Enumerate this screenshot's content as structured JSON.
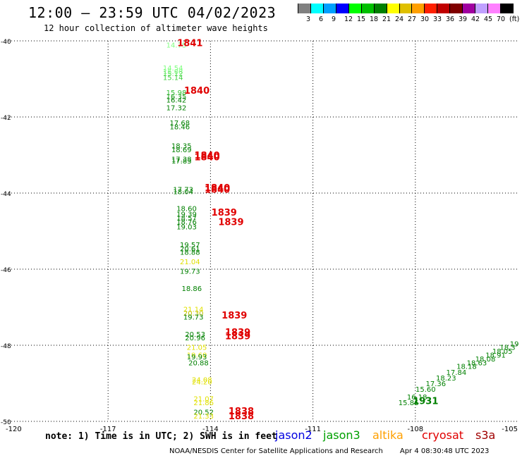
{
  "header": {
    "title": "12:00 — 23:59 UTC 04/02/2023",
    "subtitle": "12 hour collection of altimeter wave heights"
  },
  "color_scale": {
    "swatches": [
      "#808080",
      "#00ffff",
      "#00a0ff",
      "#0000ff",
      "#00ff00",
      "#00c000",
      "#008000",
      "#ffff00",
      "#e0c000",
      "#ffa000",
      "#ff2000",
      "#c00000",
      "#800000",
      "#a000a0",
      "#c0a0ff",
      "#ff80ff",
      "#000000"
    ],
    "labels": [
      "3",
      "6",
      "9",
      "12",
      "15",
      "18",
      "21",
      "24",
      "27",
      "30",
      "33",
      "36",
      "39",
      "42",
      "45",
      "70",
      "(ft)"
    ]
  },
  "map": {
    "lon_range": [
      -120,
      -105
    ],
    "lat_range": [
      -50,
      -40
    ],
    "lon_labels": [
      "-120",
      "-117",
      "-114",
      "-111",
      "-108",
      "-105"
    ],
    "lat_labels": [
      "-40",
      "-42",
      "-44",
      "-46",
      "-48",
      "-50"
    ],
    "grid": "dotted",
    "pass_labels": [
      {
        "text": "14.75",
        "lon": -115.0,
        "lat": -40.1,
        "color": "#80ff80"
      },
      {
        "text": "14.54",
        "lon": -115.1,
        "lat": -40.7,
        "color": "#80ff80"
      },
      {
        "text": "15.08",
        "lon": -115.1,
        "lat": -40.8,
        "color": "#80ff80"
      },
      {
        "text": "15.12",
        "lon": -115.1,
        "lat": -40.85,
        "color": "#60e060"
      },
      {
        "text": "15.14",
        "lon": -115.1,
        "lat": -40.95,
        "color": "#40d040"
      },
      {
        "text": "15.98",
        "lon": -115.0,
        "lat": -41.35,
        "color": "#30c030"
      },
      {
        "text": "16.35",
        "lon": -115.0,
        "lat": -41.45,
        "color": "#20a020"
      },
      {
        "text": "16.42",
        "lon": -115.0,
        "lat": -41.55,
        "color": "#008000"
      },
      {
        "text": "17.32",
        "lon": -115.0,
        "lat": -41.75,
        "color": "#008000"
      },
      {
        "text": "17.68",
        "lon": -114.9,
        "lat": -42.15,
        "color": "#008000"
      },
      {
        "text": "18.46",
        "lon": -114.9,
        "lat": -42.25,
        "color": "#008000"
      },
      {
        "text": "18.35",
        "lon": -114.85,
        "lat": -42.75,
        "color": "#008000"
      },
      {
        "text": "18.69",
        "lon": -114.85,
        "lat": -42.85,
        "color": "#008000"
      },
      {
        "text": "17.38",
        "lon": -114.85,
        "lat": -43.1,
        "color": "#008000"
      },
      {
        "text": "17.83",
        "lon": -114.85,
        "lat": -43.15,
        "color": "#008000"
      },
      {
        "text": "17.73",
        "lon": -114.8,
        "lat": -43.9,
        "color": "#008000"
      },
      {
        "text": "18.04",
        "lon": -114.8,
        "lat": -43.95,
        "color": "#008000"
      },
      {
        "text": "18.60",
        "lon": -114.7,
        "lat": -44.4,
        "color": "#008000"
      },
      {
        "text": "19.39",
        "lon": -114.7,
        "lat": -44.55,
        "color": "#008000"
      },
      {
        "text": "18.57",
        "lon": -114.7,
        "lat": -44.65,
        "color": "#008000"
      },
      {
        "text": "18.76",
        "lon": -114.7,
        "lat": -44.75,
        "color": "#008000"
      },
      {
        "text": "19.03",
        "lon": -114.7,
        "lat": -44.88,
        "color": "#008000"
      },
      {
        "text": "19.57",
        "lon": -114.6,
        "lat": -45.35,
        "color": "#008000"
      },
      {
        "text": "20.61",
        "lon": -114.6,
        "lat": -45.45,
        "color": "#008000"
      },
      {
        "text": "18.88",
        "lon": -114.6,
        "lat": -45.55,
        "color": "#008000"
      },
      {
        "text": "21.04",
        "lon": -114.6,
        "lat": -45.8,
        "color": "#e0e000"
      },
      {
        "text": "19.73",
        "lon": -114.6,
        "lat": -46.05,
        "color": "#008000"
      },
      {
        "text": "18.86",
        "lon": -114.55,
        "lat": -46.5,
        "color": "#008000"
      },
      {
        "text": "21.14",
        "lon": -114.5,
        "lat": -47.05,
        "color": "#e0e000"
      },
      {
        "text": "20.30",
        "lon": -114.5,
        "lat": -47.15,
        "color": "#c0c000"
      },
      {
        "text": "19.73",
        "lon": -114.5,
        "lat": -47.25,
        "color": "#008000"
      },
      {
        "text": "20.53",
        "lon": -114.45,
        "lat": -47.7,
        "color": "#008000"
      },
      {
        "text": "20.96",
        "lon": -114.45,
        "lat": -47.8,
        "color": "#008000"
      },
      {
        "text": "21.05",
        "lon": -114.4,
        "lat": -48.05,
        "color": "#e0e000"
      },
      {
        "text": "19.60",
        "lon": -114.4,
        "lat": -48.25,
        "color": "#e0e000"
      },
      {
        "text": "19.93",
        "lon": -114.4,
        "lat": -48.3,
        "color": "#008000"
      },
      {
        "text": "20.88",
        "lon": -114.35,
        "lat": -48.45,
        "color": "#008000"
      },
      {
        "text": "24.08",
        "lon": -114.25,
        "lat": -48.9,
        "color": "#e0e000"
      },
      {
        "text": "24.20",
        "lon": -114.25,
        "lat": -48.95,
        "color": "#e0e000"
      },
      {
        "text": "21.07",
        "lon": -114.2,
        "lat": -49.4,
        "color": "#e0e000"
      },
      {
        "text": "21.86",
        "lon": -114.2,
        "lat": -49.5,
        "color": "#e0e000"
      },
      {
        "text": "20.52",
        "lon": -114.2,
        "lat": -49.75,
        "color": "#008000"
      },
      {
        "text": "21.33",
        "lon": -114.2,
        "lat": -49.85,
        "color": "#e0e000"
      },
      {
        "text": "19",
        "lon": -105.1,
        "lat": -47.95,
        "color": "#008000"
      },
      {
        "text": "18.3",
        "lon": -105.3,
        "lat": -48.05,
        "color": "#008000"
      },
      {
        "text": "18.05",
        "lon": -105.45,
        "lat": -48.15,
        "color": "#008000"
      },
      {
        "text": "18.91",
        "lon": -105.65,
        "lat": -48.25,
        "color": "#008000"
      },
      {
        "text": "18.08",
        "lon": -105.95,
        "lat": -48.35,
        "color": "#008000"
      },
      {
        "text": "18.63",
        "lon": -106.2,
        "lat": -48.45,
        "color": "#008000"
      },
      {
        "text": "18.18",
        "lon": -106.5,
        "lat": -48.55,
        "color": "#008000"
      },
      {
        "text": "17.84",
        "lon": -106.8,
        "lat": -48.7,
        "color": "#008000"
      },
      {
        "text": "18.23",
        "lon": -107.1,
        "lat": -48.85,
        "color": "#008000"
      },
      {
        "text": "17.36",
        "lon": -107.4,
        "lat": -49.0,
        "color": "#008000"
      },
      {
        "text": "15.60",
        "lon": -107.7,
        "lat": -49.15,
        "color": "#008000"
      },
      {
        "text": "16.18",
        "lon": -107.95,
        "lat": -49.35,
        "color": "#008000"
      },
      {
        "text": "15.86",
        "lon": -108.2,
        "lat": -49.5,
        "color": "#008000"
      }
    ],
    "time_labels": [
      {
        "text": "1841",
        "lon": -114.6,
        "lat": -40.05,
        "color": "#e00000"
      },
      {
        "text": "1840",
        "lon": -114.4,
        "lat": -41.3,
        "color": "#e00000"
      },
      {
        "text": "1840",
        "lon": -114.1,
        "lat": -43.0,
        "color": "#e00000"
      },
      {
        "text": "1840",
        "lon": -114.1,
        "lat": -43.05,
        "color": "#e00000"
      },
      {
        "text": "1840",
        "lon": -113.8,
        "lat": -43.85,
        "color": "#e00000"
      },
      {
        "text": "1840",
        "lon": -113.8,
        "lat": -43.9,
        "color": "#e00000"
      },
      {
        "text": "1839",
        "lon": -113.6,
        "lat": -44.5,
        "color": "#e00000"
      },
      {
        "text": "1839",
        "lon": -113.4,
        "lat": -44.75,
        "color": "#e00000"
      },
      {
        "text": "1839",
        "lon": -113.3,
        "lat": -47.2,
        "color": "#e00000"
      },
      {
        "text": "1839",
        "lon": -113.2,
        "lat": -47.65,
        "color": "#e00000"
      },
      {
        "text": "1839",
        "lon": -113.2,
        "lat": -47.75,
        "color": "#e00000"
      },
      {
        "text": "1838",
        "lon": -113.1,
        "lat": -49.72,
        "color": "#e00000"
      },
      {
        "text": "1838",
        "lon": -113.1,
        "lat": -49.85,
        "color": "#e00000"
      },
      {
        "text": "1931",
        "lon": -107.7,
        "lat": -49.45,
        "color": "#008000"
      }
    ]
  },
  "footer": {
    "note": "note: 1) Time is in UTC; 2) SWH is in feet",
    "satellites": [
      {
        "name": "jason2",
        "color": "#0000e0"
      },
      {
        "name": "jason3",
        "color": "#00a000"
      },
      {
        "name": "altika",
        "color": "#ffa000"
      },
      {
        "name": "cryosat",
        "color": "#e00000"
      },
      {
        "name": "s3a",
        "color": "#a00000"
      }
    ],
    "credit": "NOAA/NESDIS Center for Satellite Applications and Research",
    "generated": "Apr  4 08:30:48 UTC 2023"
  }
}
